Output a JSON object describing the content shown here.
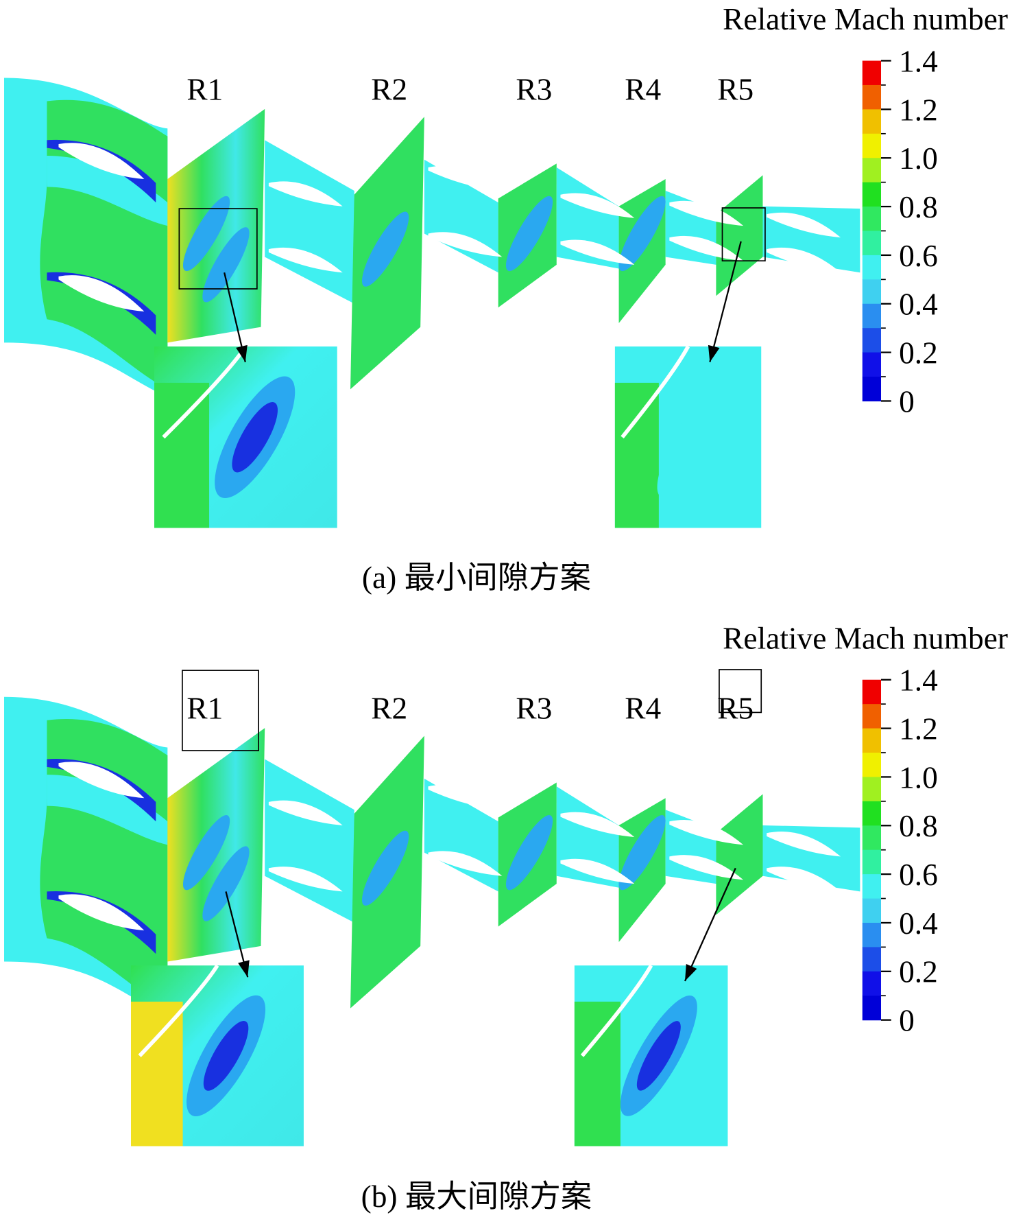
{
  "panels": [
    {
      "colorbar": {
        "title": "Relative Mach number",
        "ticks": [
          "1.4",
          "1.2",
          "1.0",
          "0.8",
          "0.6",
          "0.4",
          "0.2",
          "0"
        ]
      },
      "rows": [
        "R1",
        "R2",
        "R3",
        "R4",
        "R5"
      ],
      "caption": "(a) 最小间隙方案"
    },
    {
      "colorbar": {
        "title": "Relative Mach number",
        "ticks": [
          "1.4",
          "1.2",
          "1.0",
          "0.8",
          "0.6",
          "0.4",
          "0.2",
          "0"
        ]
      },
      "rows": [
        "R1",
        "R2",
        "R3",
        "R4",
        "R5"
      ],
      "caption": "(b) 最大间隙方案"
    }
  ]
}
